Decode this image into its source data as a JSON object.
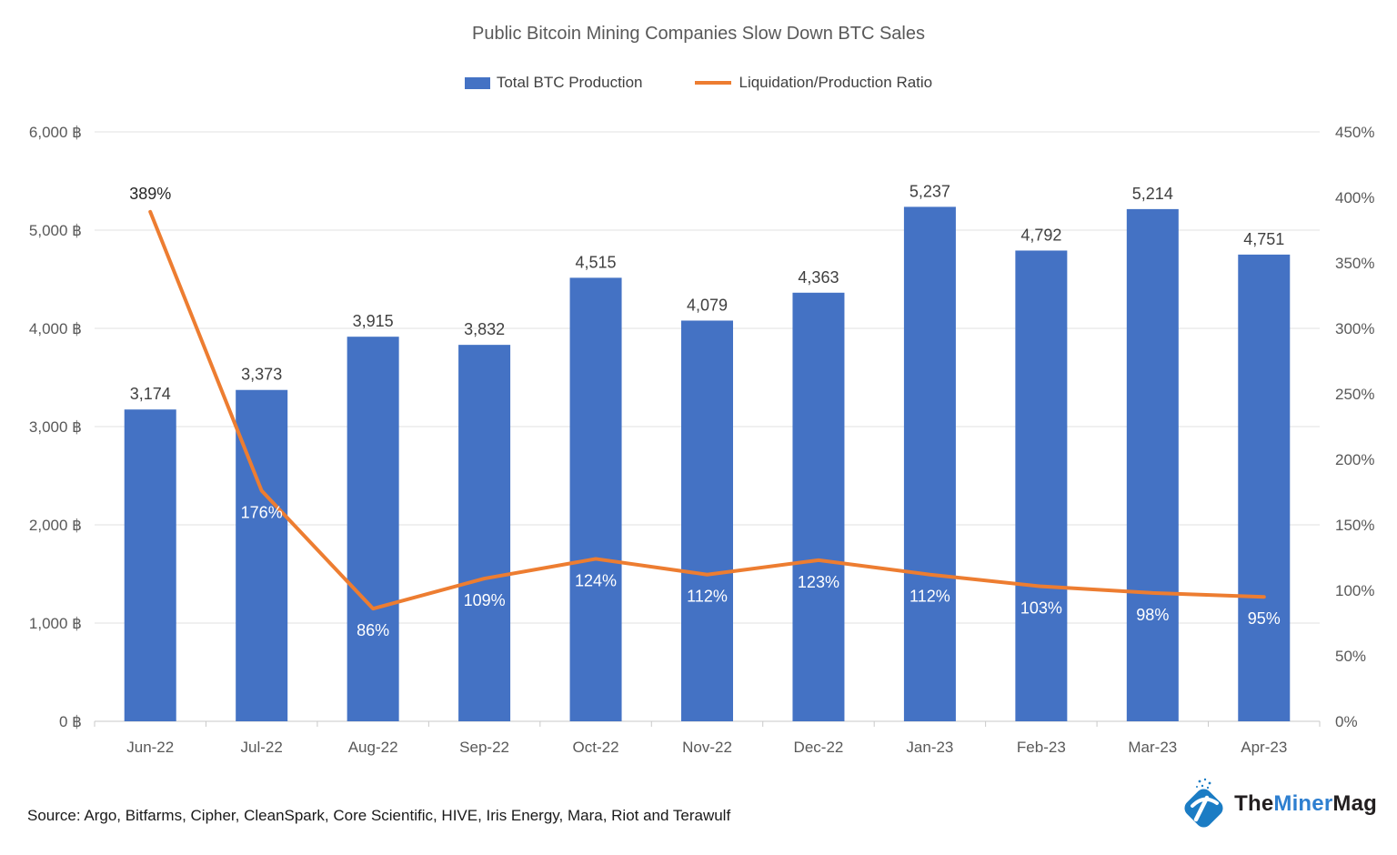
{
  "title": "Public Bitcoin Mining Companies Slow Down BTC Sales",
  "legend": [
    {
      "label": "Total BTC Production",
      "swatch": "bar"
    },
    {
      "label": "Liquidation/Production Ratio",
      "swatch": "line"
    }
  ],
  "chart_data": {
    "type": "combo-bar-line",
    "title": "Public Bitcoin Mining Companies Slow Down BTC Sales",
    "categories": [
      "Jun-22",
      "Jul-22",
      "Aug-22",
      "Sep-22",
      "Oct-22",
      "Nov-22",
      "Dec-22",
      "Jan-23",
      "Feb-23",
      "Mar-23",
      "Apr-23"
    ],
    "series": [
      {
        "name": "Total BTC Production",
        "type": "bar",
        "axis": "left",
        "values": [
          3174,
          3373,
          3915,
          3832,
          4515,
          4079,
          4363,
          5237,
          4792,
          5214,
          4751
        ]
      },
      {
        "name": "Liquidation/Production Ratio",
        "type": "line",
        "axis": "right",
        "values": [
          389,
          176,
          86,
          109,
          124,
          112,
          123,
          112,
          103,
          98,
          95
        ],
        "value_suffix": "%"
      }
    ],
    "left_axis": {
      "min": 0,
      "max": 6000,
      "step": 1000,
      "label_suffix": " ฿"
    },
    "right_axis": {
      "min": 0,
      "max": 450,
      "step": 50,
      "label_suffix": "%"
    },
    "grid": "horizontal-only",
    "legend_position": "top"
  },
  "footer": {
    "source": "Source: Argo, Bitfarms, Cipher, CleanSpark, Core Scientific, HIVE, Iris Energy, Mara, Riot and Terawulf",
    "logo": {
      "the": "The",
      "miner": "Miner",
      "mag": "Mag"
    }
  },
  "colors": {
    "bar": "#4472C4",
    "line": "#ED7D31",
    "title_text": "#595959",
    "axis_text": "#595959",
    "bar_label_text": "#404040",
    "ratio_label_text": "#FFFFFF",
    "ratio_first_label_text": "#262626",
    "gridline": "#E2E2E2",
    "axis_line": "#C9C9C9",
    "logo_icon_blue": "#1B7CC4",
    "logo_text_blue": "#2E7FD0",
    "logo_text_dark": "#231F20"
  }
}
